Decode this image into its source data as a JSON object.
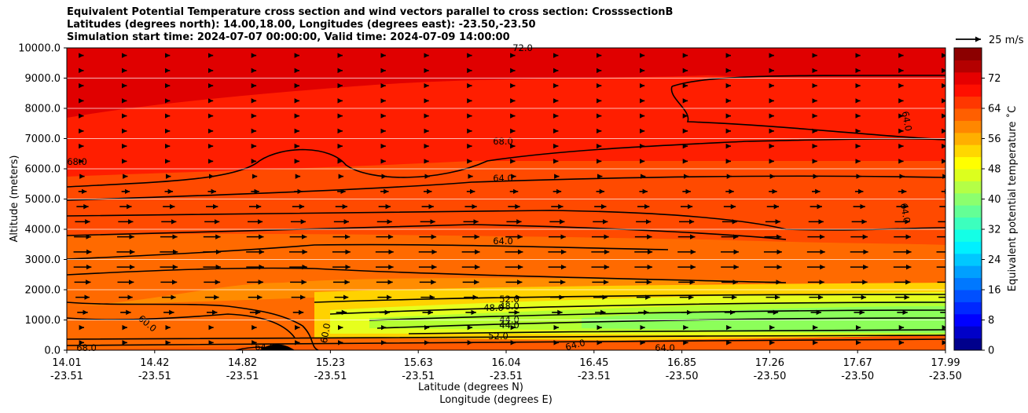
{
  "title_lines": [
    "Equivalent Potential Temperature cross section and wind vectors parallel to cross section: CrosssectionB",
    "Latitudes (degrees north): 14.00,18.00, Longitudes (degrees east): -23.50,-23.50",
    "Simulation start time: 2024-07-07 00:00:00, Valid time: 2024-07-09 14:00:00"
  ],
  "quiver_key": {
    "label": "25 m/s"
  },
  "colors": {
    "hot": "#e60000",
    "warm": "#ff6a00",
    "mid": "#ffd200",
    "cool": "#8cff5a"
  },
  "chart_data": {
    "type": "heatmap",
    "xlabel": "Latitude (degrees N)",
    "xlabel2": "Longitude (degrees E)",
    "ylabel": "Altitude (meters)",
    "colorbar_label": "Equivalent potential temperature ˚C",
    "x_ticks": [
      {
        "lat": "14.01",
        "lon": "-23.51"
      },
      {
        "lat": "14.42",
        "lon": "-23.51"
      },
      {
        "lat": "14.82",
        "lon": "-23.51"
      },
      {
        "lat": "15.23",
        "lon": "-23.51"
      },
      {
        "lat": "15.63",
        "lon": "-23.51"
      },
      {
        "lat": "16.04",
        "lon": "-23.51"
      },
      {
        "lat": "16.45",
        "lon": "-23.51"
      },
      {
        "lat": "16.85",
        "lon": "-23.50"
      },
      {
        "lat": "17.26",
        "lon": "-23.50"
      },
      {
        "lat": "17.67",
        "lon": "-23.50"
      },
      {
        "lat": "17.99",
        "lon": "-23.50"
      }
    ],
    "y_ticks": [
      "0.0",
      "1000.0",
      "2000.0",
      "3000.0",
      "4000.0",
      "5000.0",
      "6000.0",
      "7000.0",
      "8000.0",
      "9000.0",
      "10000.0"
    ],
    "ylim": [
      0,
      10000
    ],
    "colorbar_ticks": [
      "0",
      "8",
      "16",
      "24",
      "32",
      "40",
      "48",
      "56",
      "64",
      "72"
    ],
    "colorbar_range": [
      0,
      80
    ],
    "grid": "horizontal",
    "contour_labels": [
      "68.0",
      "68.0",
      "64.0",
      "64.0",
      "64.0",
      "64.0",
      "72.0",
      "60.0",
      "52.0",
      "48.0",
      "48.0",
      "44.0",
      "44.0",
      "52.0",
      "60.0",
      "64.0",
      "64.0",
      "64.0",
      "68.0"
    ]
  }
}
